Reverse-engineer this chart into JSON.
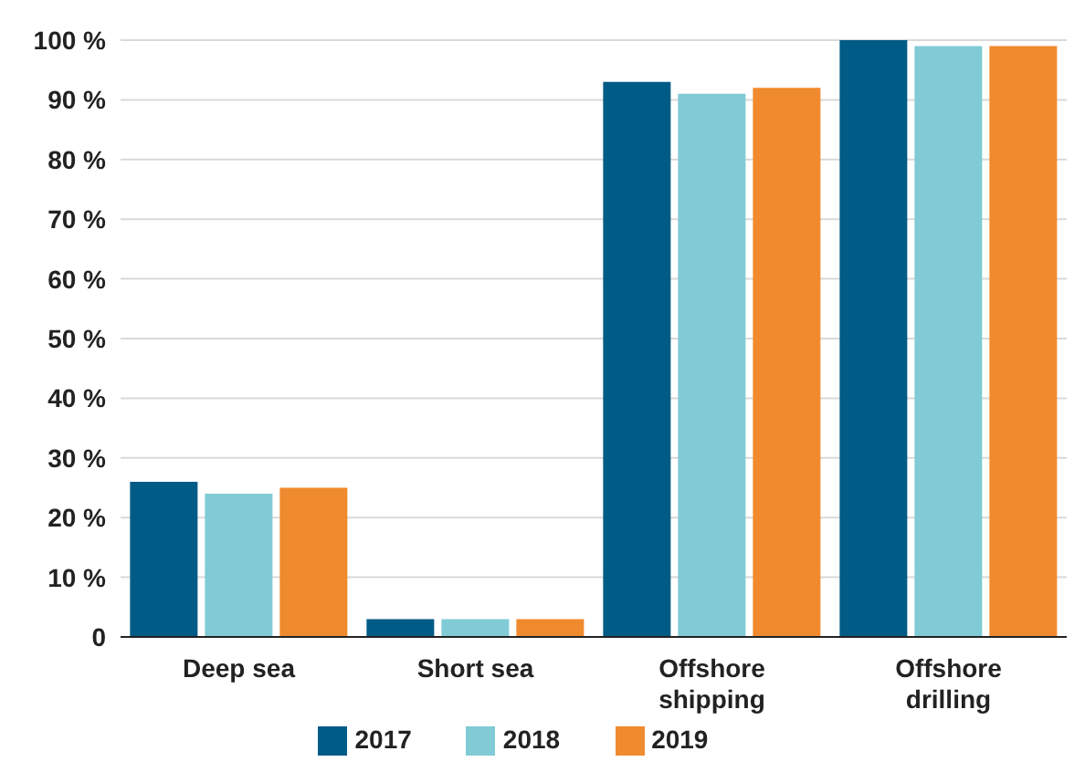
{
  "chart_data": {
    "type": "bar",
    "categories": [
      "Deep sea",
      "Short sea",
      "Offshore shipping",
      "Offshore drilling"
    ],
    "series": [
      {
        "name": "2017",
        "color": "#005b86",
        "values": [
          26,
          3,
          93,
          100
        ]
      },
      {
        "name": "2018",
        "color": "#80cbd5",
        "values": [
          24,
          3,
          91,
          99
        ]
      },
      {
        "name": "2019",
        "color": "#f08a2e",
        "values": [
          25,
          3,
          92,
          99
        ]
      }
    ],
    "ylim": [
      0,
      100
    ],
    "yticks": [
      0,
      {
        "value": 10,
        "label": "10 %"
      },
      {
        "value": 20,
        "label": "20 %"
      },
      {
        "value": 30,
        "label": "30 %"
      },
      {
        "value": 40,
        "label": "40 %"
      },
      {
        "value": 50,
        "label": "50 %"
      },
      {
        "value": 60,
        "label": "60 %"
      },
      {
        "value": 70,
        "label": "70 %"
      },
      {
        "value": 80,
        "label": "80 %"
      },
      {
        "value": 90,
        "label": "90 %"
      },
      {
        "value": 100,
        "label": "100 %"
      }
    ],
    "grid": "y",
    "legend": "bottom"
  }
}
